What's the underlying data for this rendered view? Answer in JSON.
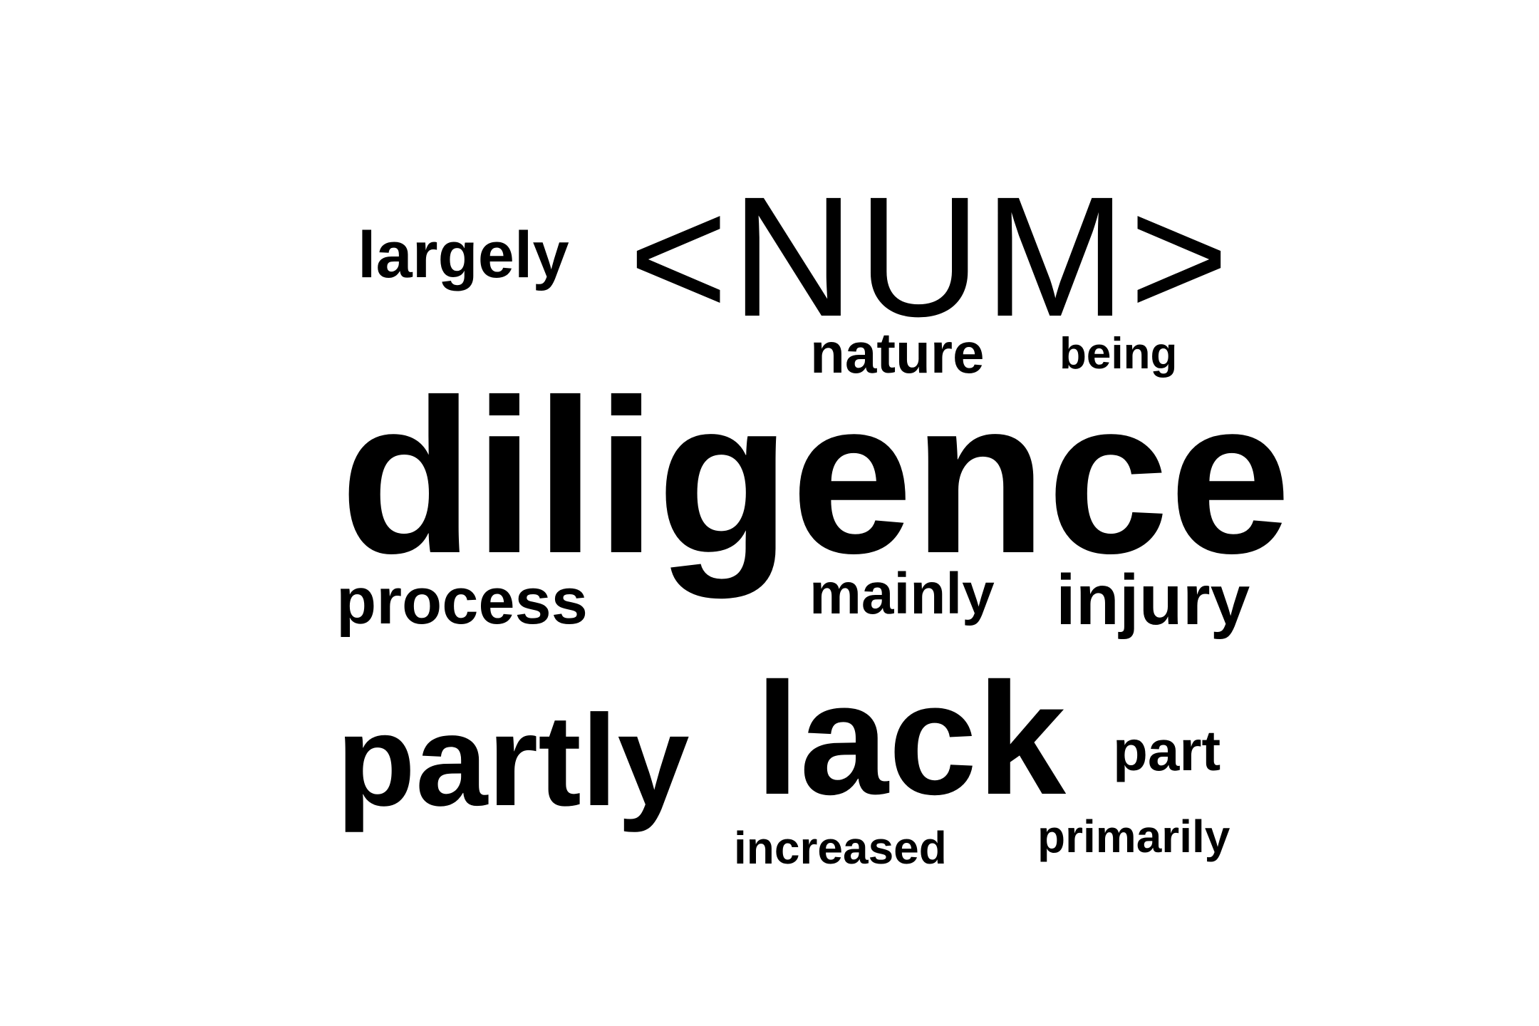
{
  "word_cloud": {
    "words": [
      {
        "text": "<NUM>"
      },
      {
        "text": "largely"
      },
      {
        "text": "nature"
      },
      {
        "text": "being"
      },
      {
        "text": "diligence"
      },
      {
        "text": "process"
      },
      {
        "text": "mainly"
      },
      {
        "text": "injury"
      },
      {
        "text": "partly"
      },
      {
        "text": "lack"
      },
      {
        "text": "part"
      },
      {
        "text": "increased"
      },
      {
        "text": "primarily"
      }
    ]
  }
}
